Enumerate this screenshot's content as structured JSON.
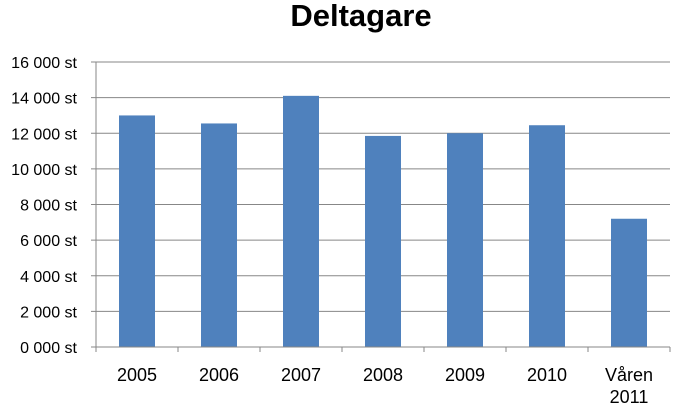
{
  "chart_data": {
    "type": "bar",
    "title": "Deltagare",
    "xlabel": "",
    "ylabel": "",
    "categories": [
      [
        "2005"
      ],
      [
        "2006"
      ],
      [
        "2007"
      ],
      [
        "2008"
      ],
      [
        "2009"
      ],
      [
        "2010"
      ],
      [
        "Våren",
        "2011"
      ]
    ],
    "values": [
      13000,
      12550,
      14100,
      11850,
      12000,
      12450,
      7200
    ],
    "ylim": [
      0,
      16000
    ],
    "yticks": [
      {
        "value": 0,
        "label": "0 000 st"
      },
      {
        "value": 2000,
        "label": "2 000 st"
      },
      {
        "value": 4000,
        "label": "4 000 st"
      },
      {
        "value": 6000,
        "label": "6 000 st"
      },
      {
        "value": 8000,
        "label": "8 000 st"
      },
      {
        "value": 10000,
        "label": "10 000 st"
      },
      {
        "value": 12000,
        "label": "12 000 st"
      },
      {
        "value": 14000,
        "label": "14 000 st"
      },
      {
        "value": 16000,
        "label": "16 000 st"
      }
    ],
    "bar_color": "#4F81BD",
    "grid": true,
    "legend": "none"
  }
}
